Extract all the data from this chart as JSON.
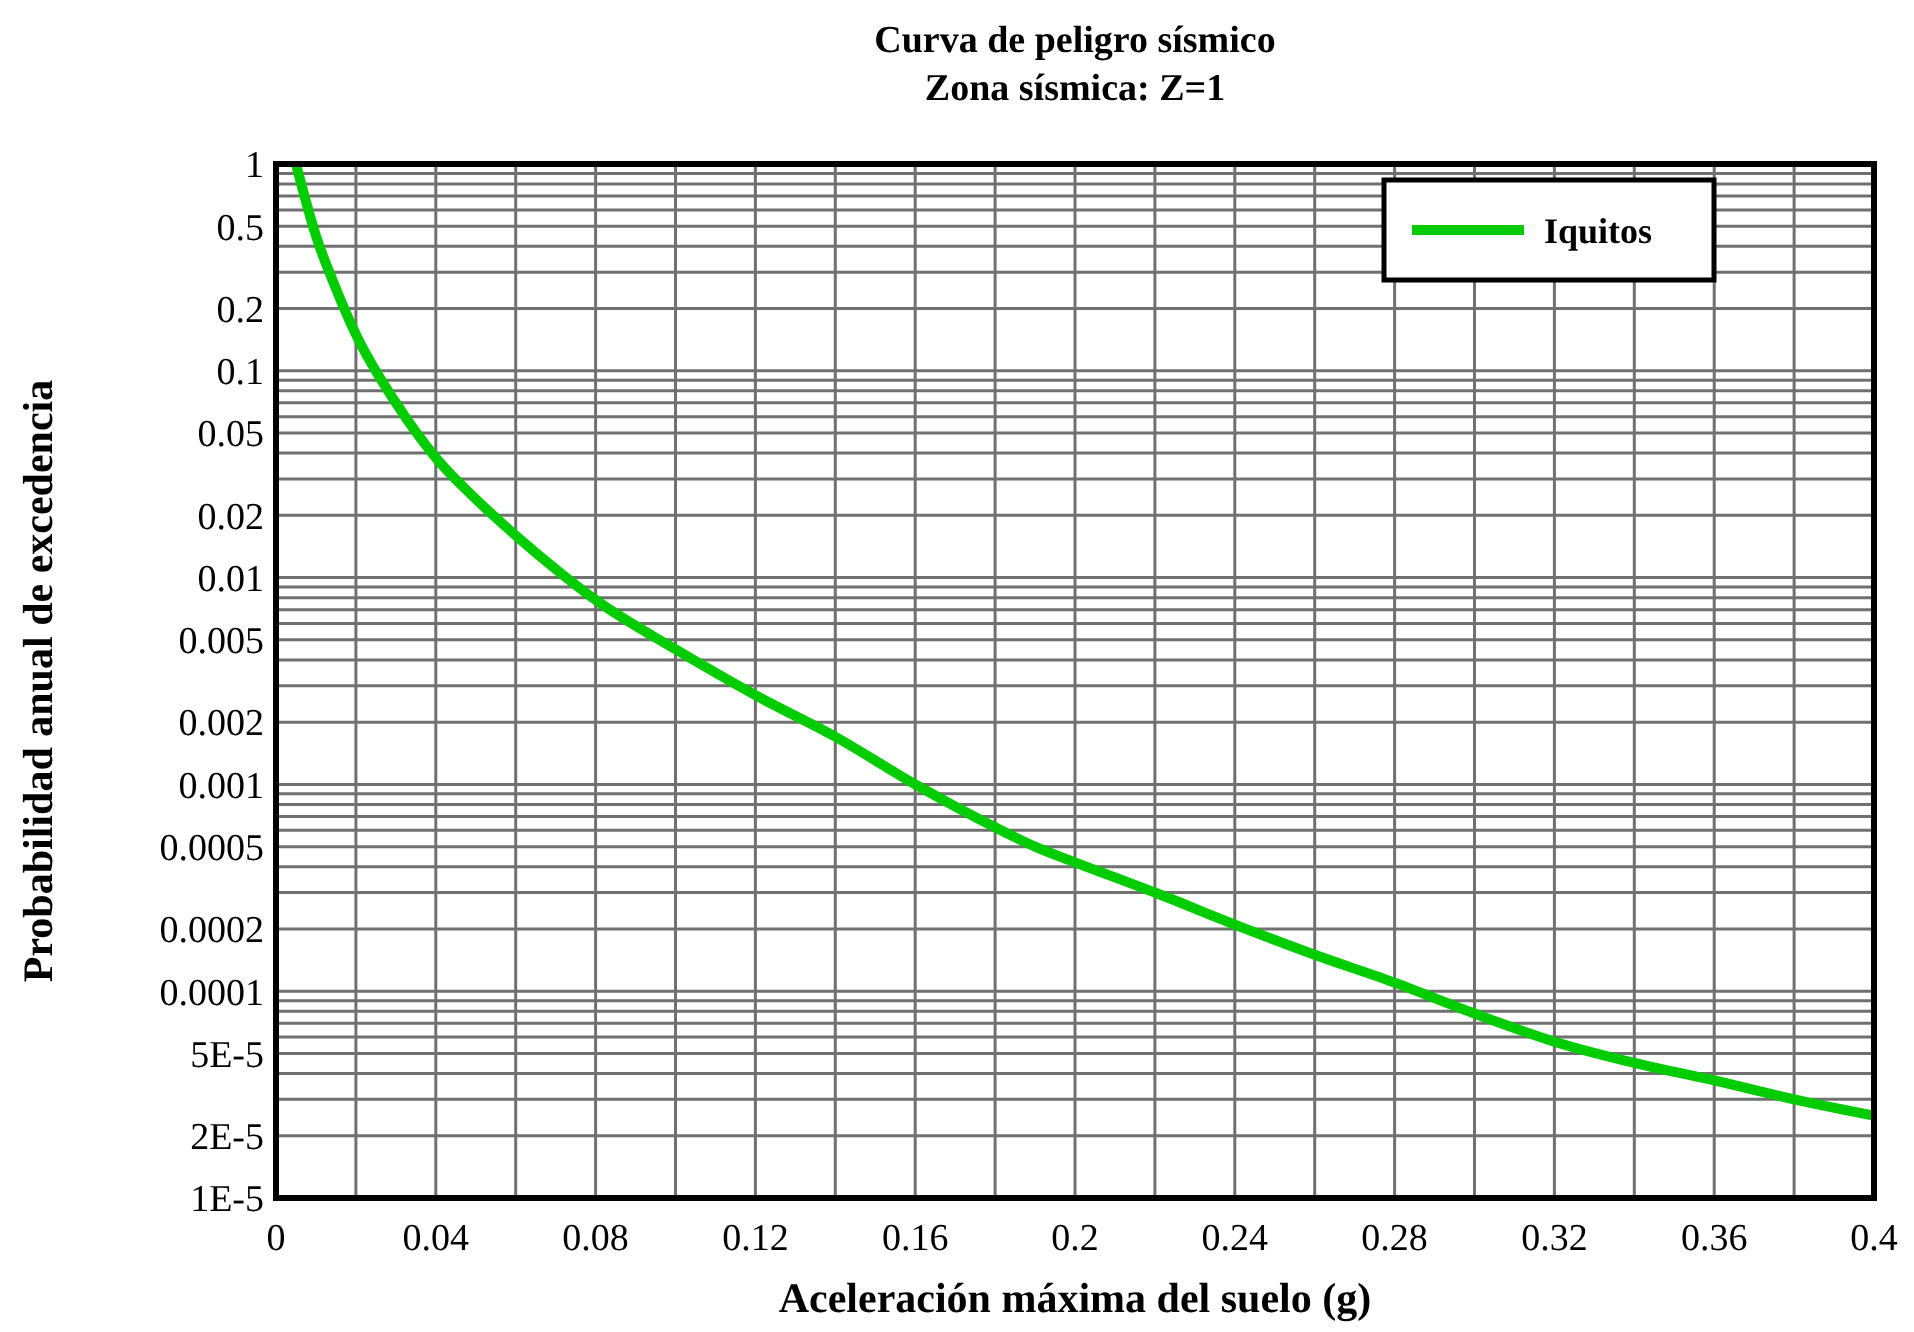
{
  "chart_data": {
    "type": "line",
    "title": "Curva de peligro sísmico",
    "subtitle": "Zona sísmica: Z=1",
    "xlabel": "Aceleración máxima del suelo (g)",
    "ylabel": "Probabilidad anual de excedencia",
    "x": [
      0.005,
      0.01,
      0.015,
      0.02,
      0.03,
      0.04,
      0.05,
      0.06,
      0.07,
      0.08,
      0.1,
      0.12,
      0.14,
      0.16,
      0.18,
      0.19,
      0.2,
      0.22,
      0.24,
      0.26,
      0.28,
      0.3,
      0.32,
      0.34,
      0.36,
      0.38,
      0.4
    ],
    "series": [
      {
        "name": "Iquitos",
        "color": "#00cc00",
        "values": [
          1,
          0.45,
          0.25,
          0.15,
          0.07,
          0.038,
          0.024,
          0.016,
          0.011,
          0.0078,
          0.0045,
          0.0027,
          0.0017,
          0.001,
          0.00062,
          0.0005,
          0.00042,
          0.0003,
          0.00021,
          0.00015,
          0.00011,
          7.8e-05,
          5.7e-05,
          4.5e-05,
          3.7e-05,
          3e-05,
          2.5e-05
        ]
      }
    ],
    "log": "y",
    "xlim": [
      0,
      0.4
    ],
    "ylim": [
      1e-05,
      1
    ],
    "xticks": [
      0,
      {
        "value": 0.02,
        "label": null
      },
      0.04,
      {
        "value": 0.06,
        "label": null
      },
      0.08,
      {
        "value": 0.1,
        "label": null
      },
      0.12,
      {
        "value": 0.14,
        "label": null
      },
      0.16,
      {
        "value": 0.18,
        "label": null
      },
      0.2,
      {
        "value": 0.22,
        "label": null
      },
      0.24,
      {
        "value": 0.26,
        "label": null
      },
      0.28,
      {
        "value": 0.3,
        "label": null
      },
      0.32,
      {
        "value": 0.34,
        "label": null
      },
      0.36,
      {
        "value": 0.38,
        "label": null
      },
      0.4
    ],
    "yticks": [
      {
        "value": 1e-05,
        "label": "1E-5"
      },
      {
        "value": 2e-05,
        "label": "2E-5"
      },
      {
        "value": 3e-05,
        "label": null
      },
      {
        "value": 4e-05,
        "label": null
      },
      {
        "value": 5e-05,
        "label": "5E-5"
      },
      {
        "value": 6e-05,
        "label": null
      },
      {
        "value": 7e-05,
        "label": null
      },
      {
        "value": 8e-05,
        "label": null
      },
      {
        "value": 9e-05,
        "label": null
      },
      0.0001,
      0.0002,
      {
        "value": 0.0003,
        "label": null
      },
      {
        "value": 0.0004,
        "label": null
      },
      0.0005,
      {
        "value": 0.0006,
        "label": null
      },
      {
        "value": 0.0007,
        "label": null
      },
      {
        "value": 0.0008,
        "label": null
      },
      {
        "value": 0.0009,
        "label": null
      },
      0.001,
      0.002,
      {
        "value": 0.003,
        "label": null
      },
      {
        "value": 0.004,
        "label": null
      },
      0.005,
      {
        "value": 0.006,
        "label": null
      },
      {
        "value": 0.007,
        "label": null
      },
      {
        "value": 0.008,
        "label": null
      },
      {
        "value": 0.009,
        "label": null
      },
      0.01,
      0.02,
      {
        "value": 0.03,
        "label": null
      },
      {
        "value": 0.04,
        "label": null
      },
      0.05,
      {
        "value": 0.06,
        "label": null
      },
      {
        "value": 0.07,
        "label": null
      },
      {
        "value": 0.08,
        "label": null
      },
      {
        "value": 0.09,
        "label": null
      },
      0.1,
      0.2,
      {
        "value": 0.3,
        "label": null
      },
      {
        "value": 0.4,
        "label": null
      },
      0.5,
      {
        "value": 0.6,
        "label": null
      },
      {
        "value": 0.7,
        "label": null
      },
      {
        "value": 0.8,
        "label": null
      },
      {
        "value": 0.9,
        "label": null
      },
      1
    ],
    "grid": true,
    "legend": "top right",
    "line_style": "solid"
  }
}
